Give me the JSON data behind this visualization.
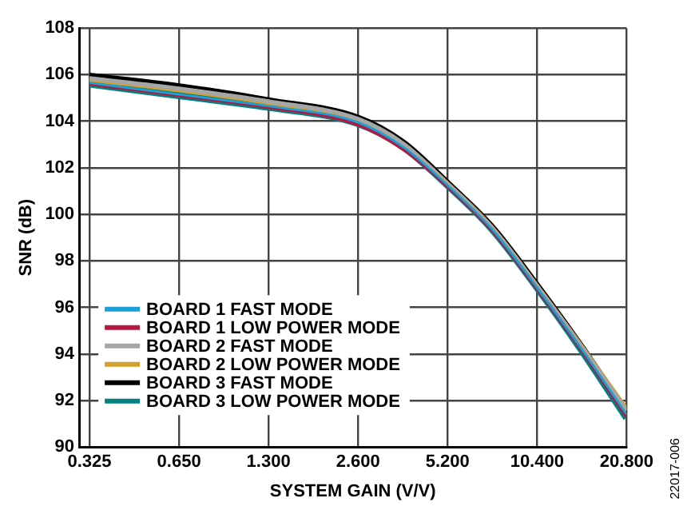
{
  "chart_data": {
    "type": "line",
    "xlabel": "SYSTEM GAIN (V/V)",
    "ylabel": "SNR (dB)",
    "log": "x",
    "x": [
      0.325,
      0.65,
      1.3,
      2.6,
      3.68,
      5.2,
      7.35,
      10.4,
      14.7,
      20.8
    ],
    "series": [
      {
        "name": "BOARD 1 FAST MODE",
        "color": "#1ba1d8",
        "values": [
          105.65,
          105.15,
          104.65,
          103.95,
          102.9,
          101.25,
          99.35,
          96.85,
          94.2,
          91.4
        ]
      },
      {
        "name": "BOARD 1 LOW POWER MODE",
        "color": "#b5193f",
        "values": [
          105.6,
          105.1,
          104.6,
          103.85,
          102.8,
          101.2,
          99.3,
          96.8,
          94.15,
          91.3
        ]
      },
      {
        "name": "BOARD 2 FAST MODE",
        "color": "#a6a6a6",
        "values": [
          105.85,
          105.4,
          104.85,
          104.1,
          103.05,
          101.3,
          99.4,
          96.9,
          94.3,
          91.55
        ]
      },
      {
        "name": "BOARD 2 LOW POWER MODE",
        "color": "#d4a02a",
        "values": [
          105.8,
          105.35,
          104.8,
          104.05,
          103.0,
          101.3,
          99.4,
          96.9,
          94.3,
          91.6
        ]
      },
      {
        "name": "BOARD 3 FAST MODE",
        "color": "#000000",
        "values": [
          105.95,
          105.5,
          104.9,
          104.15,
          103.1,
          101.35,
          99.45,
          96.95,
          94.3,
          91.45
        ]
      },
      {
        "name": "BOARD 3 LOW POWER MODE",
        "color": "#008080",
        "values": [
          105.6,
          105.1,
          104.6,
          103.9,
          102.9,
          101.25,
          99.35,
          96.85,
          94.15,
          91.25
        ]
      }
    ],
    "xlim": [
      0.325,
      20.8
    ],
    "xticks": [
      0.325,
      {
        "value": 0.65,
        "label": "0.650"
      },
      {
        "value": 1.3,
        "label": "1.300"
      },
      {
        "value": 2.6,
        "label": "2.600"
      },
      {
        "value": 5.2,
        "label": "5.200"
      },
      {
        "value": 10.4,
        "label": "10.400"
      },
      {
        "value": 20.8,
        "label": "20.800"
      }
    ],
    "ylim": [
      90,
      108
    ],
    "yticks": [
      90,
      92,
      94,
      96,
      98,
      100,
      102,
      104,
      106,
      108
    ],
    "grid": true,
    "legend": "bottom left",
    "marker": "none",
    "line_style": "solid",
    "annotations": [
      "22017-006"
    ]
  }
}
